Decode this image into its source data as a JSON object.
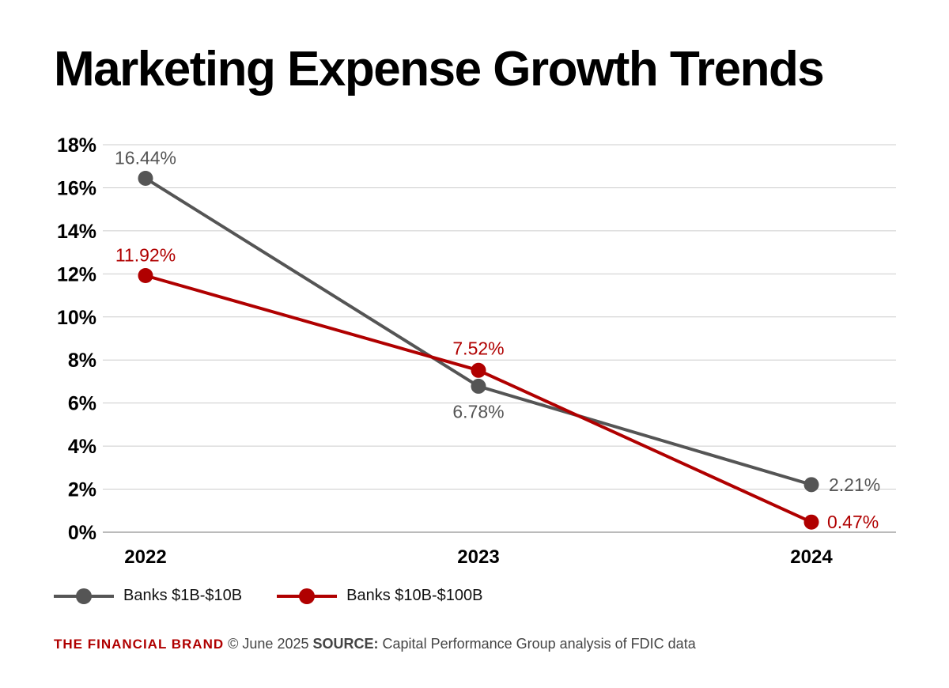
{
  "chart_data": {
    "type": "line",
    "title": "Marketing Expense Growth Trends",
    "categories": [
      "2022",
      "2023",
      "2024"
    ],
    "ylim": [
      0,
      18
    ],
    "yticks": [
      0,
      2,
      4,
      6,
      8,
      10,
      12,
      14,
      16,
      18
    ],
    "ytick_format": "%",
    "grid": true,
    "legend_placement": "bottom-left",
    "series": [
      {
        "name": "Banks $1B-$10B",
        "color": "#555555",
        "values": [
          16.44,
          6.78,
          2.21
        ],
        "labels": [
          "16.44%",
          "6.78%",
          "2.21%"
        ]
      },
      {
        "name": "Banks $10B-$100B",
        "color": "#b00000",
        "values": [
          11.92,
          7.52,
          0.47
        ],
        "labels": [
          "11.92%",
          "7.52%",
          "0.47%"
        ]
      }
    ]
  },
  "footer": {
    "brand": "THE FINANCIAL BRAND",
    "date": "© June 2025",
    "source_label": "SOURCE:",
    "source_text": "Capital Performance Group analysis of FDIC data"
  }
}
